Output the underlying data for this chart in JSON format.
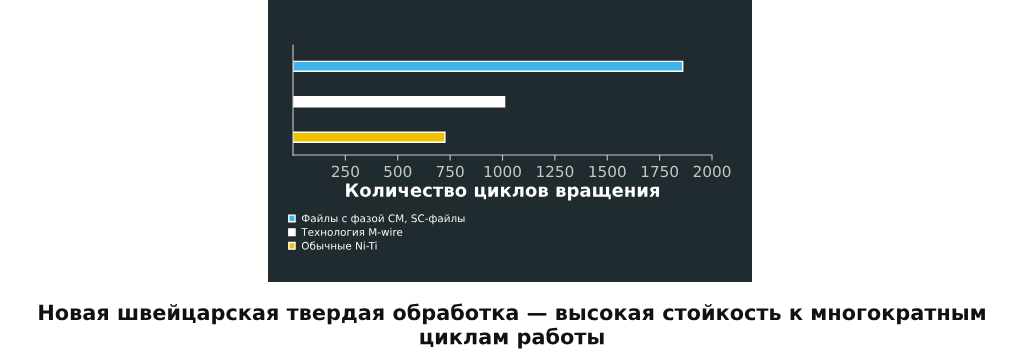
{
  "chart_data": {
    "type": "bar",
    "orientation": "horizontal",
    "title": "Новая швейцарская твердая обработка — высокая стойкость к многократным циклам работы",
    "xlabel": "Количество циклов вращения",
    "categories": [
      null,
      null,
      null
    ],
    "series": [
      {
        "name": "Файлы с фазой CM, SC-файлы",
        "color": "#3db5e8",
        "values": [
          1860,
          null,
          null
        ]
      },
      {
        "name": "Технология M-wire",
        "color": "#ffffff",
        "values": [
          null,
          1010,
          null
        ]
      },
      {
        "name": "Обычные Ni-Ti",
        "color": "#f2c200",
        "values": [
          null,
          null,
          725
        ]
      }
    ],
    "xlim": [
      0,
      2000
    ],
    "xticks": [
      250,
      500,
      750,
      1000,
      1250,
      1500,
      1750,
      2000
    ],
    "grid": false,
    "legend": "bottom left"
  }
}
